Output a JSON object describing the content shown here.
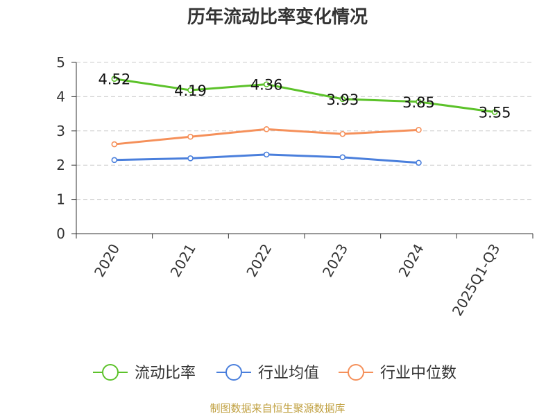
{
  "chart_data": {
    "type": "line",
    "title": "历年流动比率变化情况",
    "categories": [
      "2020",
      "2021",
      "2022",
      "2023",
      "2024",
      "2025Q1-Q3"
    ],
    "ylim": [
      0,
      5
    ],
    "yticks": [
      "0",
      "1",
      "2",
      "3",
      "4",
      "5"
    ],
    "grid": true,
    "legend_position": "bottom",
    "series": [
      {
        "name": "流动比率",
        "color": "#5cc22a",
        "values": [
          4.52,
          4.19,
          4.36,
          3.93,
          3.85,
          3.55
        ],
        "labels": [
          "4.52",
          "4.19",
          "4.36",
          "3.93",
          "3.85",
          "3.55"
        ]
      },
      {
        "name": "行业均值",
        "color": "#4a7fdc",
        "values": [
          2.15,
          2.2,
          2.31,
          2.23,
          2.07,
          null
        ]
      },
      {
        "name": "行业中位数",
        "color": "#f5905a",
        "values": [
          2.61,
          2.83,
          3.05,
          2.91,
          3.03,
          null
        ]
      }
    ]
  },
  "source_note": "制图数据来自恒生聚源数据库"
}
